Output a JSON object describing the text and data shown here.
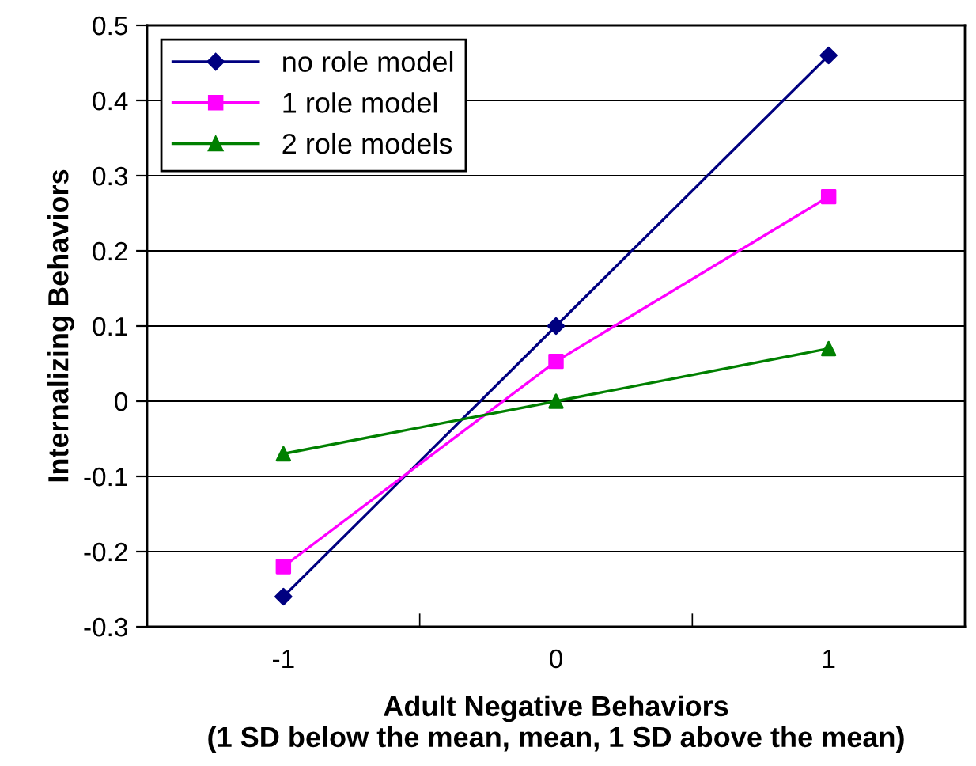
{
  "chart_data": {
    "type": "line",
    "xlabel": "Adult Negative Behaviors\n(1 SD below the mean, mean, 1 SD above the mean)",
    "ylabel": "Internalizing Behaviors",
    "x": [
      -1,
      0,
      1
    ],
    "xlim": [
      -1.5,
      1.5
    ],
    "xticks": [
      -1,
      {
        "value": -0.5,
        "label": null
      },
      0,
      {
        "value": 0.5,
        "label": null
      },
      1
    ],
    "series": [
      {
        "name": "no role model",
        "color": "#000080",
        "marker": "diamond",
        "values": [
          -0.26,
          0.1,
          0.46
        ]
      },
      {
        "name": "1 role model",
        "color": "#ff00ff",
        "marker": "square",
        "values": [
          -0.22,
          0.053,
          0.272
        ]
      },
      {
        "name": "2 role models",
        "color": "#008000",
        "marker": "triangle",
        "values": [
          -0.07,
          0.0,
          0.07
        ]
      }
    ],
    "ylim": [
      -0.3,
      0.5
    ],
    "yticks": [
      -0.3,
      -0.2,
      -0.1,
      0,
      0.1,
      0.2,
      0.3,
      0.4,
      0.5
    ],
    "grid": "y",
    "legend": "top left",
    "line_style": "solid"
  }
}
